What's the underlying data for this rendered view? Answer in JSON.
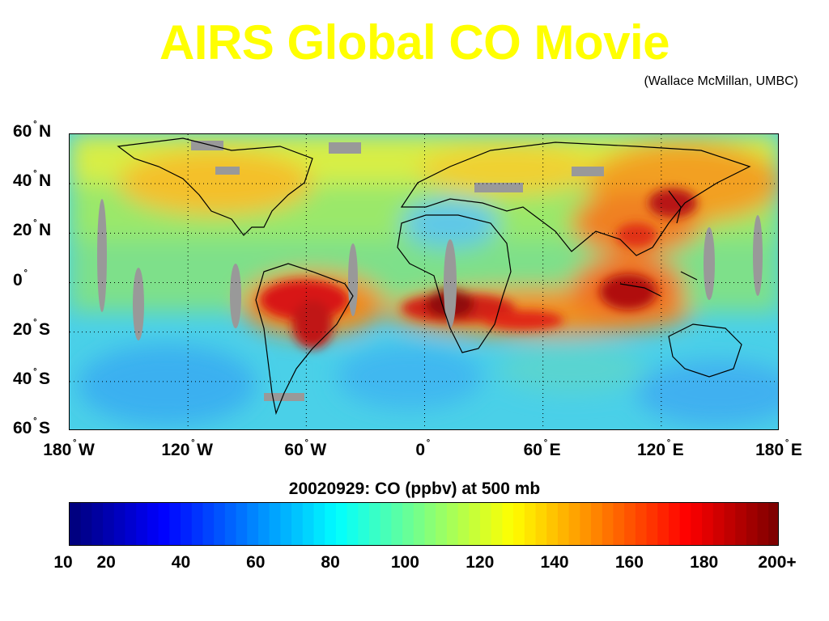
{
  "title": "AIRS Global CO Movie",
  "title_color": "#ffff00",
  "credit": "(Wallace McMillan, UMBC)",
  "map": {
    "latitude_labels": [
      {
        "value": 60,
        "text": "60",
        "hemi": "N"
      },
      {
        "value": 40,
        "text": "40",
        "hemi": "N"
      },
      {
        "value": 20,
        "text": "20",
        "hemi": "N"
      },
      {
        "value": 0,
        "text": "0",
        "hemi": ""
      },
      {
        "value": -20,
        "text": "20",
        "hemi": "S"
      },
      {
        "value": -40,
        "text": "40",
        "hemi": "S"
      },
      {
        "value": -60,
        "text": "60",
        "hemi": "S"
      }
    ],
    "longitude_labels": [
      {
        "value": -180,
        "text": "180",
        "hemi": "W"
      },
      {
        "value": -120,
        "text": "120",
        "hemi": "W"
      },
      {
        "value": -60,
        "text": "60",
        "hemi": "W"
      },
      {
        "value": 0,
        "text": "0",
        "hemi": ""
      },
      {
        "value": 60,
        "text": "60",
        "hemi": "E"
      },
      {
        "value": 120,
        "text": "120",
        "hemi": "E"
      },
      {
        "value": 180,
        "text": "180",
        "hemi": "E"
      }
    ],
    "lat_range": [
      -60,
      60
    ],
    "lon_range": [
      -180,
      180
    ],
    "missing_data_color": "#999999"
  },
  "colorbar": {
    "title": "20020929:  CO (ppbv) at 500 mb",
    "range": [
      10,
      200
    ],
    "ticks": [
      {
        "value": 10,
        "label": "10"
      },
      {
        "value": 20,
        "label": "20"
      },
      {
        "value": 40,
        "label": "40"
      },
      {
        "value": 60,
        "label": "60"
      },
      {
        "value": 80,
        "label": "80"
      },
      {
        "value": 100,
        "label": "100"
      },
      {
        "value": 120,
        "label": "120"
      },
      {
        "value": 140,
        "label": "140"
      },
      {
        "value": 160,
        "label": "160"
      },
      {
        "value": 180,
        "label": "180"
      },
      {
        "value": 200,
        "label": "200+"
      }
    ],
    "colormap": "jet"
  }
}
